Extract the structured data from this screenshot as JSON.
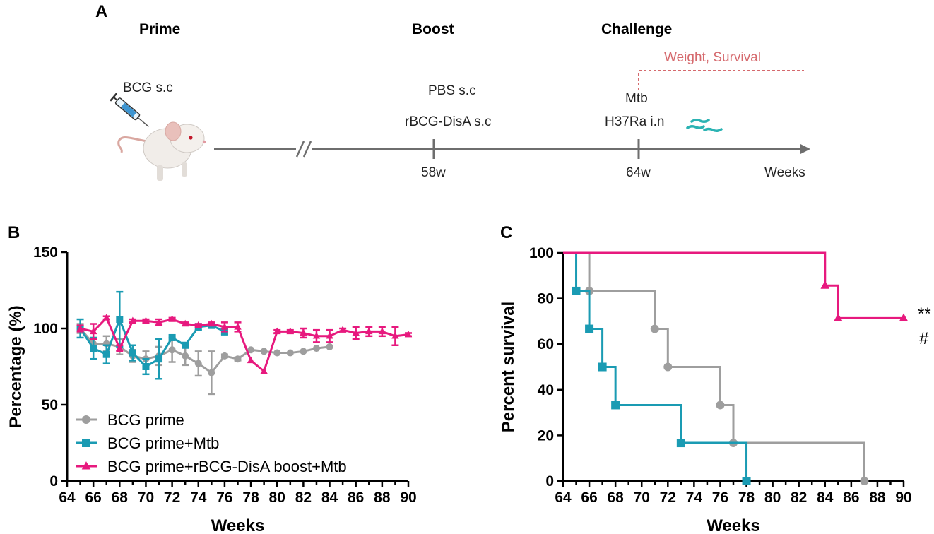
{
  "colors": {
    "gray": "#9e9e9e",
    "teal": "#1a9bb3",
    "magenta": "#e7197e",
    "timeline": "#6e6e6e",
    "weight_note": "#d5696d"
  },
  "panel_a": {
    "letter": "A",
    "stage_prime": "Prime",
    "stage_boost": "Boost",
    "stage_challenge": "Challenge",
    "prime_route": "BCG s.c",
    "boost_line1": "PBS s.c",
    "boost_line2": "rBCG-DisA s.c",
    "challenge_line1": "Mtb",
    "challenge_line2": "H37Ra i.n",
    "tick_58": "58w",
    "tick_64": "64w",
    "axis_label": "Weeks",
    "readout": "Weight, Survival",
    "mouse_icon": "mouse-icon",
    "syringe_icon": "syringe-icon",
    "bacteria_icon": "bacteria-icon"
  },
  "chart_data": [
    {
      "panel": "B",
      "type": "line",
      "xlabel": "Weeks",
      "ylabel": "Percentage (%)",
      "xlim": [
        64,
        90
      ],
      "ylim": [
        0,
        150
      ],
      "xticks": [
        64,
        66,
        68,
        70,
        72,
        74,
        76,
        78,
        80,
        82,
        84,
        86,
        88,
        90
      ],
      "yticks": [
        0,
        50,
        100,
        150
      ],
      "legend_position": "bottom-left",
      "series": [
        {
          "name": "BCG prime",
          "color": "#9e9e9e",
          "marker": "circle",
          "x": [
            65,
            66,
            67,
            68,
            69,
            70,
            71,
            72,
            73,
            74,
            75,
            76,
            77,
            78,
            79,
            80,
            81,
            82,
            83,
            84
          ],
          "y": [
            100,
            90,
            90,
            88,
            82,
            80,
            82,
            86,
            82,
            77,
            71,
            82,
            80,
            86,
            85,
            84,
            84,
            85,
            87,
            88
          ],
          "err": [
            3,
            3,
            5,
            5,
            4,
            5,
            6,
            8,
            6,
            8,
            14,
            1,
            1,
            0,
            0,
            0,
            0,
            0,
            0,
            0
          ]
        },
        {
          "name": "BCG prime+Mtb",
          "color": "#1a9bb3",
          "marker": "square",
          "x": [
            65,
            66,
            67,
            68,
            69,
            70,
            71,
            72,
            73,
            74,
            75,
            76
          ],
          "y": [
            100,
            87,
            83,
            106,
            84,
            75,
            80,
            94,
            89,
            101,
            102,
            98
          ],
          "err": [
            6,
            7,
            6,
            18,
            5,
            5,
            13,
            0,
            0,
            2,
            0,
            2
          ]
        },
        {
          "name": "BCG prime+rBCG-DisA boost+Mtb",
          "color": "#e7197e",
          "marker": "triangle",
          "x": [
            65,
            66,
            67,
            68,
            69,
            70,
            71,
            72,
            73,
            74,
            75,
            76,
            77,
            78,
            79,
            80,
            81,
            82,
            83,
            84,
            85,
            86,
            87,
            88,
            89,
            90
          ],
          "y": [
            100,
            98,
            107,
            87,
            105,
            105,
            104,
            106,
            103,
            102,
            103,
            101,
            101,
            79,
            72,
            98,
            98,
            97,
            95,
            95,
            99,
            97,
            98,
            98,
            95,
            96
          ],
          "err": [
            2,
            5,
            1,
            2,
            1,
            1,
            2,
            1,
            1,
            1,
            1,
            3,
            3,
            0,
            0,
            1,
            1,
            3,
            4,
            4,
            1,
            4,
            3,
            3,
            6,
            1
          ]
        }
      ]
    },
    {
      "panel": "C",
      "type": "line",
      "subtype": "kaplan-meier",
      "xlabel": "Weeks",
      "ylabel": "Percent survival",
      "xlim": [
        64,
        90
      ],
      "ylim": [
        0,
        100
      ],
      "xticks": [
        64,
        66,
        68,
        70,
        72,
        74,
        76,
        78,
        80,
        82,
        84,
        86,
        88,
        90
      ],
      "yticks": [
        0,
        20,
        40,
        60,
        80,
        100
      ],
      "annotations": [
        "**",
        "#"
      ],
      "series": [
        {
          "name": "BCG prime",
          "color": "#9e9e9e",
          "marker": "circle",
          "steps": [
            [
              64,
              100
            ],
            [
              66,
              83.3
            ],
            [
              71,
              66.7
            ],
            [
              72,
              50
            ],
            [
              76,
              33.3
            ],
            [
              77,
              16.7
            ],
            [
              87,
              0
            ]
          ]
        },
        {
          "name": "BCG prime+Mtb",
          "color": "#1a9bb3",
          "marker": "square",
          "steps": [
            [
              64,
              100
            ],
            [
              65,
              83.3
            ],
            [
              66,
              66.7
            ],
            [
              67,
              50
            ],
            [
              68,
              33.3
            ],
            [
              73,
              16.7
            ],
            [
              78,
              0
            ]
          ]
        },
        {
          "name": "BCG prime+rBCG-DisA boost+Mtb",
          "color": "#e7197e",
          "marker": "triangle",
          "steps": [
            [
              64,
              100
            ],
            [
              84,
              85.7
            ],
            [
              85,
              71.4
            ]
          ],
          "end_x": 90
        }
      ]
    }
  ]
}
